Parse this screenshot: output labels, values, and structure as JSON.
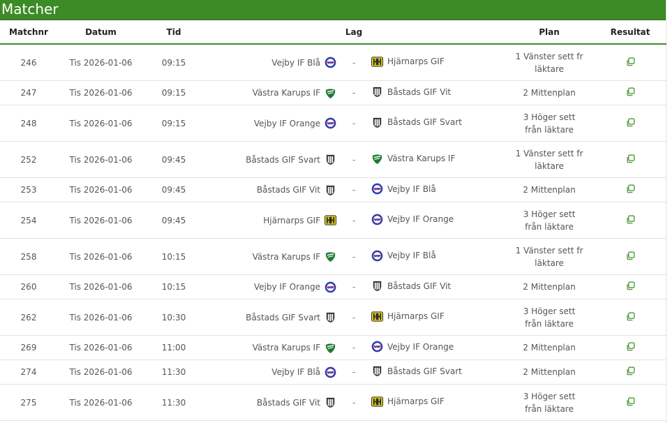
{
  "page": {
    "title": "Matcher"
  },
  "columns": {
    "matchnr": "Matchnr",
    "datum": "Datum",
    "tid": "Tid",
    "lag": "Lag",
    "plan": "Plan",
    "resultat": "Resultat"
  },
  "separator": "-",
  "colors": {
    "header_green": "#3c8b26"
  },
  "matches": [
    {
      "nr": "246",
      "date": "Tis 2026-01-06",
      "time": "09:15",
      "home": "Vejby IF Blå",
      "home_logo": "vejby-logo",
      "away": "Hjärnarps GIF",
      "away_logo": "hjarnarp-logo",
      "plan": "1 Vänster sett fr läktare"
    },
    {
      "nr": "247",
      "date": "Tis 2026-01-06",
      "time": "09:15",
      "home": "Västra Karups IF",
      "home_logo": "vastra-karup-logo",
      "away": "Båstads GIF Vit",
      "away_logo": "bastad-logo",
      "plan": "2 Mittenplan"
    },
    {
      "nr": "248",
      "date": "Tis 2026-01-06",
      "time": "09:15",
      "home": "Vejby IF Orange",
      "home_logo": "vejby-logo",
      "away": "Båstads GIF Svart",
      "away_logo": "bastad-logo",
      "plan": "3 Höger sett från läktare"
    },
    {
      "nr": "252",
      "date": "Tis 2026-01-06",
      "time": "09:45",
      "home": "Båstads GIF Svart",
      "home_logo": "bastad-logo",
      "away": "Västra Karups IF",
      "away_logo": "vastra-karup-logo",
      "plan": "1 Vänster sett fr läktare"
    },
    {
      "nr": "253",
      "date": "Tis 2026-01-06",
      "time": "09:45",
      "home": "Båstads GIF Vit",
      "home_logo": "bastad-logo",
      "away": "Vejby IF Blå",
      "away_logo": "vejby-logo",
      "plan": "2 Mittenplan"
    },
    {
      "nr": "254",
      "date": "Tis 2026-01-06",
      "time": "09:45",
      "home": "Hjärnarps GIF",
      "home_logo": "hjarnarp-logo",
      "away": "Vejby IF Orange",
      "away_logo": "vejby-logo",
      "plan": "3 Höger sett från läktare"
    },
    {
      "nr": "258",
      "date": "Tis 2026-01-06",
      "time": "10:15",
      "home": "Västra Karups IF",
      "home_logo": "vastra-karup-logo",
      "away": "Vejby IF Blå",
      "away_logo": "vejby-logo",
      "plan": "1 Vänster sett fr läktare"
    },
    {
      "nr": "260",
      "date": "Tis 2026-01-06",
      "time": "10:15",
      "home": "Vejby IF Orange",
      "home_logo": "vejby-logo",
      "away": "Båstads GIF Vit",
      "away_logo": "bastad-logo",
      "plan": "2 Mittenplan"
    },
    {
      "nr": "262",
      "date": "Tis 2026-01-06",
      "time": "10:30",
      "home": "Båstads GIF Svart",
      "home_logo": "bastad-logo",
      "away": "Hjärnarps GIF",
      "away_logo": "hjarnarp-logo",
      "plan": "3 Höger sett från läktare"
    },
    {
      "nr": "269",
      "date": "Tis 2026-01-06",
      "time": "11:00",
      "home": "Västra Karups IF",
      "home_logo": "vastra-karup-logo",
      "away": "Vejby IF Orange",
      "away_logo": "vejby-logo",
      "plan": "2 Mittenplan"
    },
    {
      "nr": "274",
      "date": "Tis 2026-01-06",
      "time": "11:30",
      "home": "Vejby IF Blå",
      "home_logo": "vejby-logo",
      "away": "Båstads GIF Svart",
      "away_logo": "bastad-logo",
      "plan": "2 Mittenplan"
    },
    {
      "nr": "275",
      "date": "Tis 2026-01-06",
      "time": "11:30",
      "home": "Båstads GIF Vit",
      "home_logo": "bastad-logo",
      "away": "Hjärnarps GIF",
      "away_logo": "hjarnarp-logo",
      "plan": "3 Höger sett från läktare"
    }
  ]
}
